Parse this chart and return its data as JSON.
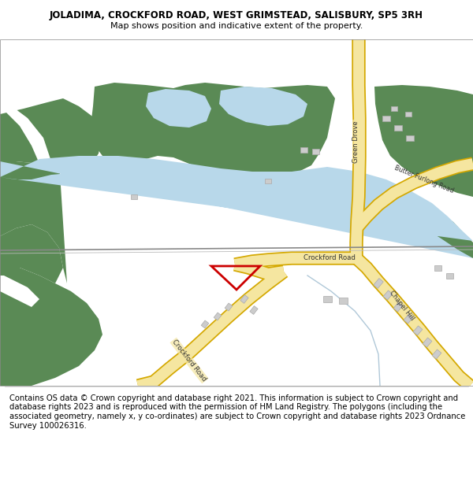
{
  "title": "JOLADIMA, CROCKFORD ROAD, WEST GRIMSTEAD, SALISBURY, SP5 3RH",
  "subtitle": "Map shows position and indicative extent of the property.",
  "footer": "Contains OS data © Crown copyright and database right 2021. This information is subject to Crown copyright and database rights 2023 and is reproduced with the permission of HM Land Registry. The polygons (including the associated geometry, namely x, y co-ordinates) are subject to Crown copyright and database rights 2023 Ordnance Survey 100026316.",
  "title_fontsize": 8.5,
  "subtitle_fontsize": 8,
  "footer_fontsize": 7.2,
  "bg_color": "#ffffff",
  "map_bg": "#f5f5f0",
  "green_dark": "#5a8a55",
  "blue_light": "#b8d8ea",
  "road_yellow": "#f5e6a0",
  "road_yellow_border": "#d4a800",
  "red_plot": "#cc0000",
  "grey_road": "#aaaaaa",
  "building_fill": "#cccccc",
  "building_edge": "#aaaaaa"
}
